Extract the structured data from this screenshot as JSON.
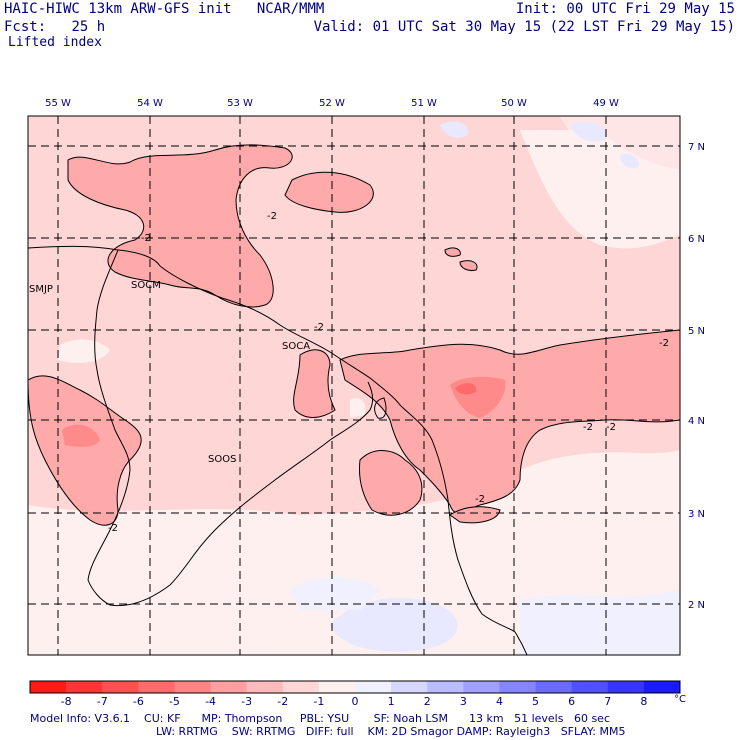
{
  "header": {
    "model_line": "HAIC-HIWC 13km ARW-GFS init",
    "org": "NCAR/MMM",
    "fcst_label": "Fcst:",
    "fcst_value": "25 h",
    "field": "Lifted index",
    "init": "Init: 00 UTC Fri 29 May 15",
    "valid": "Valid: 01 UTC Sat 30 May 15 (22 LST Fri 29 May 15)"
  },
  "map": {
    "longitude_labels": [
      "55 W",
      "54 W",
      "53 W",
      "52 W",
      "51 W",
      "50 W",
      "49 W"
    ],
    "latitude_labels": [
      "7 N",
      "6 N",
      "5 N",
      "4 N",
      "3 N",
      "2 N"
    ],
    "contour_labels": [
      "-2",
      "-2",
      "-2",
      "-2",
      "-2",
      "-2",
      "-2",
      "-2"
    ],
    "stations": [
      "SMJP",
      "SOCM",
      "SOCA",
      "SOOS"
    ],
    "station_color": "#e000e0"
  },
  "colorbar": {
    "ticks": [
      "-8",
      "-7",
      "-6",
      "-5",
      "-4",
      "-3",
      "-2",
      "-1",
      "0",
      "1",
      "2",
      "3",
      "4",
      "5",
      "6",
      "7",
      "8"
    ],
    "unit": "°C",
    "colors": [
      "#ff1a1a",
      "#ff3535",
      "#ff5050",
      "#ff6a6a",
      "#ff8585",
      "#ffa0a0",
      "#ffbbbb",
      "#ffd6d6",
      "#fff0f0",
      "#f0f0ff",
      "#d6d6ff",
      "#bbbbff",
      "#a0a0ff",
      "#8585ff",
      "#6a6aff",
      "#5050ff",
      "#3535ff",
      "#1a1aff"
    ]
  },
  "footer": {
    "line1": "Model Info: V3.6.1    CU: KF      MP: Thompson     PBL: YSU       SF: Noah LSM      13 km   51 levels   60 sec",
    "line2": "LW: RRTMG    SW: RRTMG   DIFF: full    KM: 2D Smagor DAMP: Rayleigh3   SFLAY: MM5"
  }
}
